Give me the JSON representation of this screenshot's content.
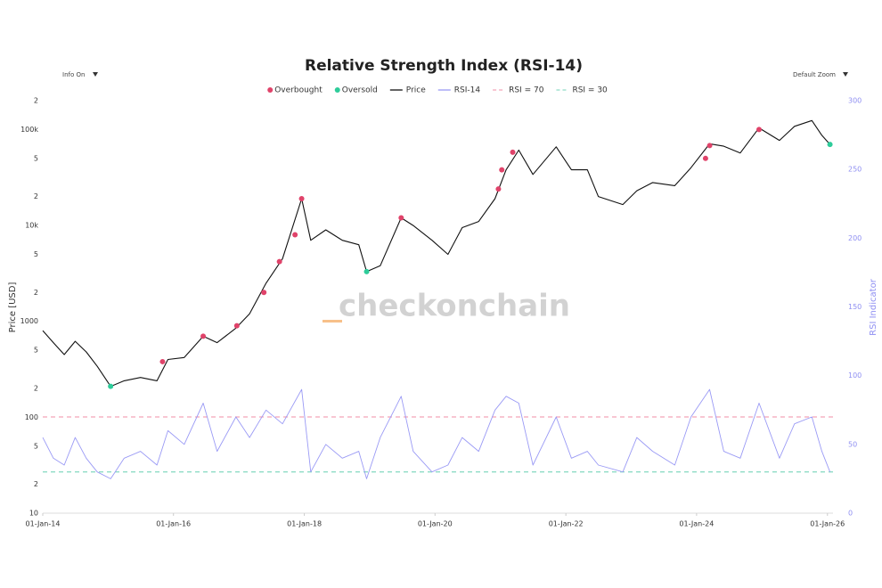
{
  "controls": {
    "info": "Info On",
    "zoom": "Default Zoom"
  },
  "watermark": "checkonchain",
  "chart_data": {
    "type": "line",
    "title": "Relative Strength Index (RSI-14)",
    "y_label": "Price [USD]",
    "y2_label": "RSI Indicator",
    "log_y": true,
    "x": [
      "2014-01-01",
      "2014-03-01",
      "2014-05-01",
      "2014-07-01",
      "2014-09-01",
      "2014-11-01",
      "2015-01-15",
      "2015-04-01",
      "2015-07-01",
      "2015-10-01",
      "2015-12-01",
      "2016-03-01",
      "2016-06-15",
      "2016-09-01",
      "2016-12-15",
      "2017-03-01",
      "2017-06-01",
      "2017-09-01",
      "2017-12-17",
      "2018-02-06",
      "2018-05-01",
      "2018-08-01",
      "2018-11-01",
      "2018-12-15",
      "2019-03-01",
      "2019-06-26",
      "2019-09-01",
      "2019-12-15",
      "2020-03-13",
      "2020-06-01",
      "2020-09-01",
      "2020-12-01",
      "2021-02-01",
      "2021-04-13",
      "2021-07-01",
      "2021-11-08",
      "2022-02-01",
      "2022-05-01",
      "2022-07-01",
      "2022-11-15",
      "2023-02-01",
      "2023-05-01",
      "2023-09-01",
      "2023-12-01",
      "2024-03-14",
      "2024-06-01",
      "2024-09-01",
      "2024-12-15",
      "2025-04-08",
      "2025-07-01",
      "2025-10-06",
      "2025-12-01",
      "2026-01-15"
    ],
    "series": [
      {
        "name": "Overbought",
        "kind": "scatter",
        "color": "#e0436a",
        "x": [
          "2015-11-01",
          "2016-06-15",
          "2016-12-20",
          "2017-05-20",
          "2017-08-15",
          "2017-11-10",
          "2017-12-17",
          "2019-06-26",
          "2020-12-20",
          "2021-01-08",
          "2021-03-10",
          "2024-02-20",
          "2024-03-14",
          "2024-12-15"
        ],
        "values": [
          380,
          700,
          900,
          2000,
          4200,
          8000,
          19000,
          12000,
          24000,
          38000,
          58000,
          50000,
          68000,
          100000
        ]
      },
      {
        "name": "Oversold",
        "kind": "scatter",
        "color": "#2ecc9a",
        "x": [
          "2015-01-15",
          "2018-12-15",
          "2026-01-15"
        ],
        "values": [
          210,
          3300,
          70000
        ]
      },
      {
        "name": "Price",
        "kind": "line",
        "color": "#111111",
        "values": [
          800,
          600,
          450,
          620,
          480,
          340,
          210,
          240,
          260,
          240,
          400,
          420,
          700,
          600,
          850,
          1200,
          2500,
          4500,
          19000,
          7000,
          9000,
          7000,
          6300,
          3300,
          3800,
          12000,
          10000,
          7000,
          5000,
          9500,
          11000,
          19000,
          38000,
          61000,
          34000,
          66000,
          38000,
          38000,
          20000,
          16500,
          23000,
          28000,
          26000,
          40000,
          71000,
          67000,
          57000,
          104000,
          77000,
          108000,
          124000,
          87000,
          70000
        ]
      },
      {
        "name": "RSI-14",
        "kind": "line",
        "axis": "y2",
        "color": "#9a9af5",
        "values": [
          55,
          40,
          35,
          55,
          40,
          30,
          25,
          40,
          45,
          35,
          60,
          50,
          80,
          45,
          70,
          55,
          75,
          65,
          90,
          30,
          50,
          40,
          45,
          25,
          55,
          85,
          45,
          30,
          35,
          55,
          45,
          75,
          85,
          80,
          35,
          70,
          40,
          45,
          35,
          30,
          55,
          45,
          35,
          70,
          90,
          45,
          40,
          80,
          40,
          65,
          70,
          45,
          30
        ]
      }
    ],
    "reference_lines": [
      {
        "name": "RSI = 70",
        "value": 70,
        "axis": "y2",
        "color": "#f3a3b8"
      },
      {
        "name": "RSI = 30",
        "value": 30,
        "axis": "y2",
        "color": "#8fdcc6"
      }
    ],
    "xlim": [
      "2014-01-01",
      "2026-02-01"
    ],
    "xticks": [
      {
        "value": "2014-01-01",
        "label": "01-Jan-14"
      },
      {
        "value": "2016-01-01",
        "label": "01-Jan-16"
      },
      {
        "value": "2018-01-01",
        "label": "01-Jan-18"
      },
      {
        "value": "2020-01-01",
        "label": "01-Jan-20"
      },
      {
        "value": "2022-01-01",
        "label": "01-Jan-22"
      },
      {
        "value": "2024-01-01",
        "label": "01-Jan-24"
      },
      {
        "value": "2026-01-01",
        "label": "01-Jan-26"
      }
    ],
    "ylim": [
      10,
      200000
    ],
    "yticks": [
      10,
      {
        "value": 20,
        "label": "2"
      },
      {
        "value": 50,
        "label": "5"
      },
      100,
      {
        "value": 200,
        "label": "2"
      },
      {
        "value": 500,
        "label": "5"
      },
      1000,
      {
        "value": 2000,
        "label": "2"
      },
      {
        "value": 5000,
        "label": "5"
      },
      {
        "value": 10000,
        "label": "10k"
      },
      {
        "value": 20000,
        "label": "2"
      },
      {
        "value": 50000,
        "label": "5"
      },
      {
        "value": 100000,
        "label": "100k"
      },
      {
        "value": 200000,
        "label": "2"
      }
    ],
    "y2lim": [
      0,
      300
    ],
    "y2ticks": [
      0,
      50,
      100,
      150,
      200,
      250,
      300
    ]
  }
}
